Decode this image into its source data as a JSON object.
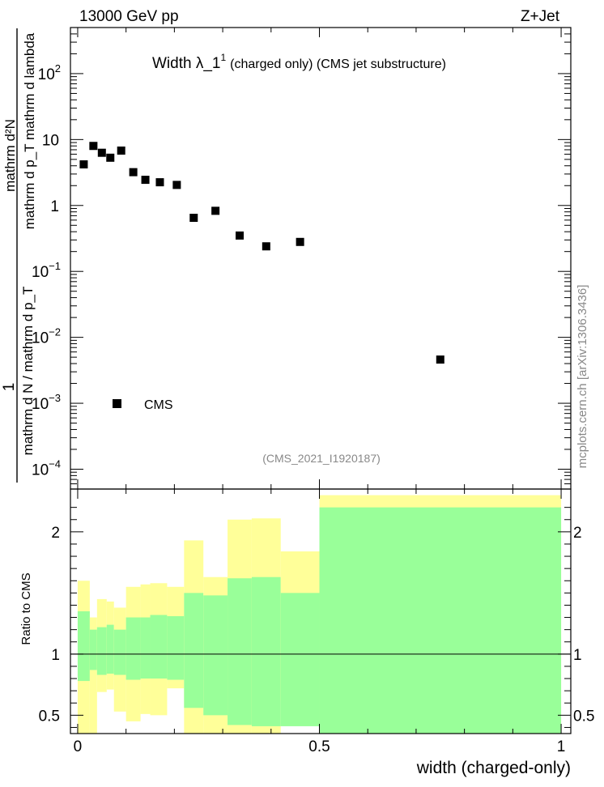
{
  "header": {
    "left": "13000 GeV pp",
    "right": "Z+Jet"
  },
  "plot_title": {
    "main": "Width λ_1",
    "sup": "1",
    "sub": "(charged only) (CMS jet substructure)"
  },
  "analysis_id": "(CMS_2021_I1920187)",
  "watermark": "mcplots.cern.ch [arXiv:1306.3436]",
  "main_ylabel": {
    "numerator": "1",
    "denominator": "mathrm d N / mathrm d p_T",
    "num2": "mathrm d²N",
    "den2": "mathrm d p_T mathrm d lambda"
  },
  "ratio_ylabel": "Ratio to CMS",
  "xlabel": "width (charged-only)",
  "legend": {
    "label": "CMS"
  },
  "chart_data": [
    {
      "type": "scatter",
      "name": "main",
      "xlim": [
        -0.015,
        1.02
      ],
      "ylim": [
        5e-05,
        500
      ],
      "ylog": true,
      "y_ticks": [
        {
          "v": 0.0001,
          "base": "10",
          "exp": "−4"
        },
        {
          "v": 0.001,
          "base": "10",
          "exp": "−3"
        },
        {
          "v": 0.01,
          "base": "10",
          "exp": "−2"
        },
        {
          "v": 0.1,
          "base": "10",
          "exp": "−1"
        },
        {
          "v": 1,
          "base": "1",
          "exp": ""
        },
        {
          "v": 10,
          "base": "10",
          "exp": ""
        },
        {
          "v": 100,
          "base": "10",
          "exp": "2"
        }
      ],
      "series": [
        {
          "name": "CMS",
          "x": [
            0.0125,
            0.0325,
            0.05,
            0.0675,
            0.09,
            0.115,
            0.14,
            0.17,
            0.205,
            0.24,
            0.285,
            0.335,
            0.39,
            0.46,
            0.75
          ],
          "y": [
            4.2,
            8.0,
            6.3,
            5.3,
            6.8,
            3.2,
            2.45,
            2.25,
            2.05,
            0.65,
            0.83,
            0.35,
            0.24,
            0.28,
            0.0046
          ]
        }
      ]
    },
    {
      "type": "area",
      "name": "ratio",
      "xlim": [
        -0.015,
        1.02
      ],
      "ylim": [
        0.35,
        2.35
      ],
      "y_ticks": [
        0.5,
        1,
        2
      ],
      "x_ticks": [
        0,
        0.5,
        1
      ],
      "x_tick_labels": [
        "0",
        "0.5",
        "1"
      ],
      "reference_line": 1,
      "bins": [
        0.0,
        0.025,
        0.04,
        0.06,
        0.075,
        0.1,
        0.13,
        0.15,
        0.185,
        0.22,
        0.26,
        0.31,
        0.36,
        0.42,
        0.5,
        1.0
      ],
      "band_total": {
        "upper": [
          1.6,
          1.3,
          1.45,
          1.43,
          1.38,
          1.55,
          1.57,
          1.58,
          1.55,
          1.93,
          1.63,
          2.1,
          2.11,
          1.84,
          2.3
        ],
        "lower": [
          0.35,
          0.35,
          0.69,
          0.71,
          0.53,
          0.45,
          0.51,
          0.5,
          0.72,
          0.35,
          0.35,
          0.35,
          0.35,
          0.62,
          0.35
        ]
      },
      "band_inner": {
        "upper": [
          1.35,
          1.2,
          1.22,
          1.24,
          1.2,
          1.3,
          1.3,
          1.32,
          1.31,
          1.5,
          1.48,
          1.62,
          1.63,
          1.5,
          2.2
        ],
        "lower": [
          0.78,
          0.87,
          0.83,
          0.84,
          0.83,
          0.79,
          0.8,
          0.8,
          0.79,
          0.56,
          0.5,
          0.42,
          0.41,
          0.41,
          0.35
        ]
      },
      "colors": {
        "outer": "#ffff99",
        "inner": "#99ff99"
      }
    }
  ]
}
